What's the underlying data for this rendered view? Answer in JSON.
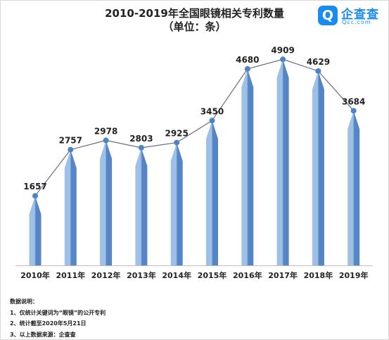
{
  "header": {
    "title_line1": "2010-2019年全国眼镜相关专利数量",
    "title_line2": "（单位：条）"
  },
  "logo": {
    "icon": "qcc-logo-icon",
    "mark": "Q",
    "name_cn": "企查查",
    "name_en": "Qcc.com",
    "color": "#1a8cf0"
  },
  "chart_data": {
    "type": "bar",
    "title": "2010-2019年全国眼镜相关专利数量",
    "subtitle": "（单位：条）",
    "categories": [
      "2010年",
      "2011年",
      "2012年",
      "2013年",
      "2014年",
      "2015年",
      "2016年",
      "2017年",
      "2018年",
      "2019年"
    ],
    "values": [
      1657,
      2757,
      2978,
      2803,
      2925,
      3450,
      4680,
      4909,
      4629,
      3684
    ],
    "ylim": [
      0,
      5400
    ],
    "grid": false,
    "legend": "none",
    "overlay_line": true,
    "colors": {
      "bar_light": "#9fc0e6",
      "bar_mid": "#7aa6da",
      "bar_dark": "#5585c4",
      "line": "#6a6a88",
      "marker": "#4e84c4"
    }
  },
  "notes": {
    "heading": "数据说明：",
    "items": [
      "1、仅统计关键词为“眼镜”的公开专利",
      "2、统计截至2020年5月21日",
      "3、以上数据来源：企查查"
    ]
  }
}
